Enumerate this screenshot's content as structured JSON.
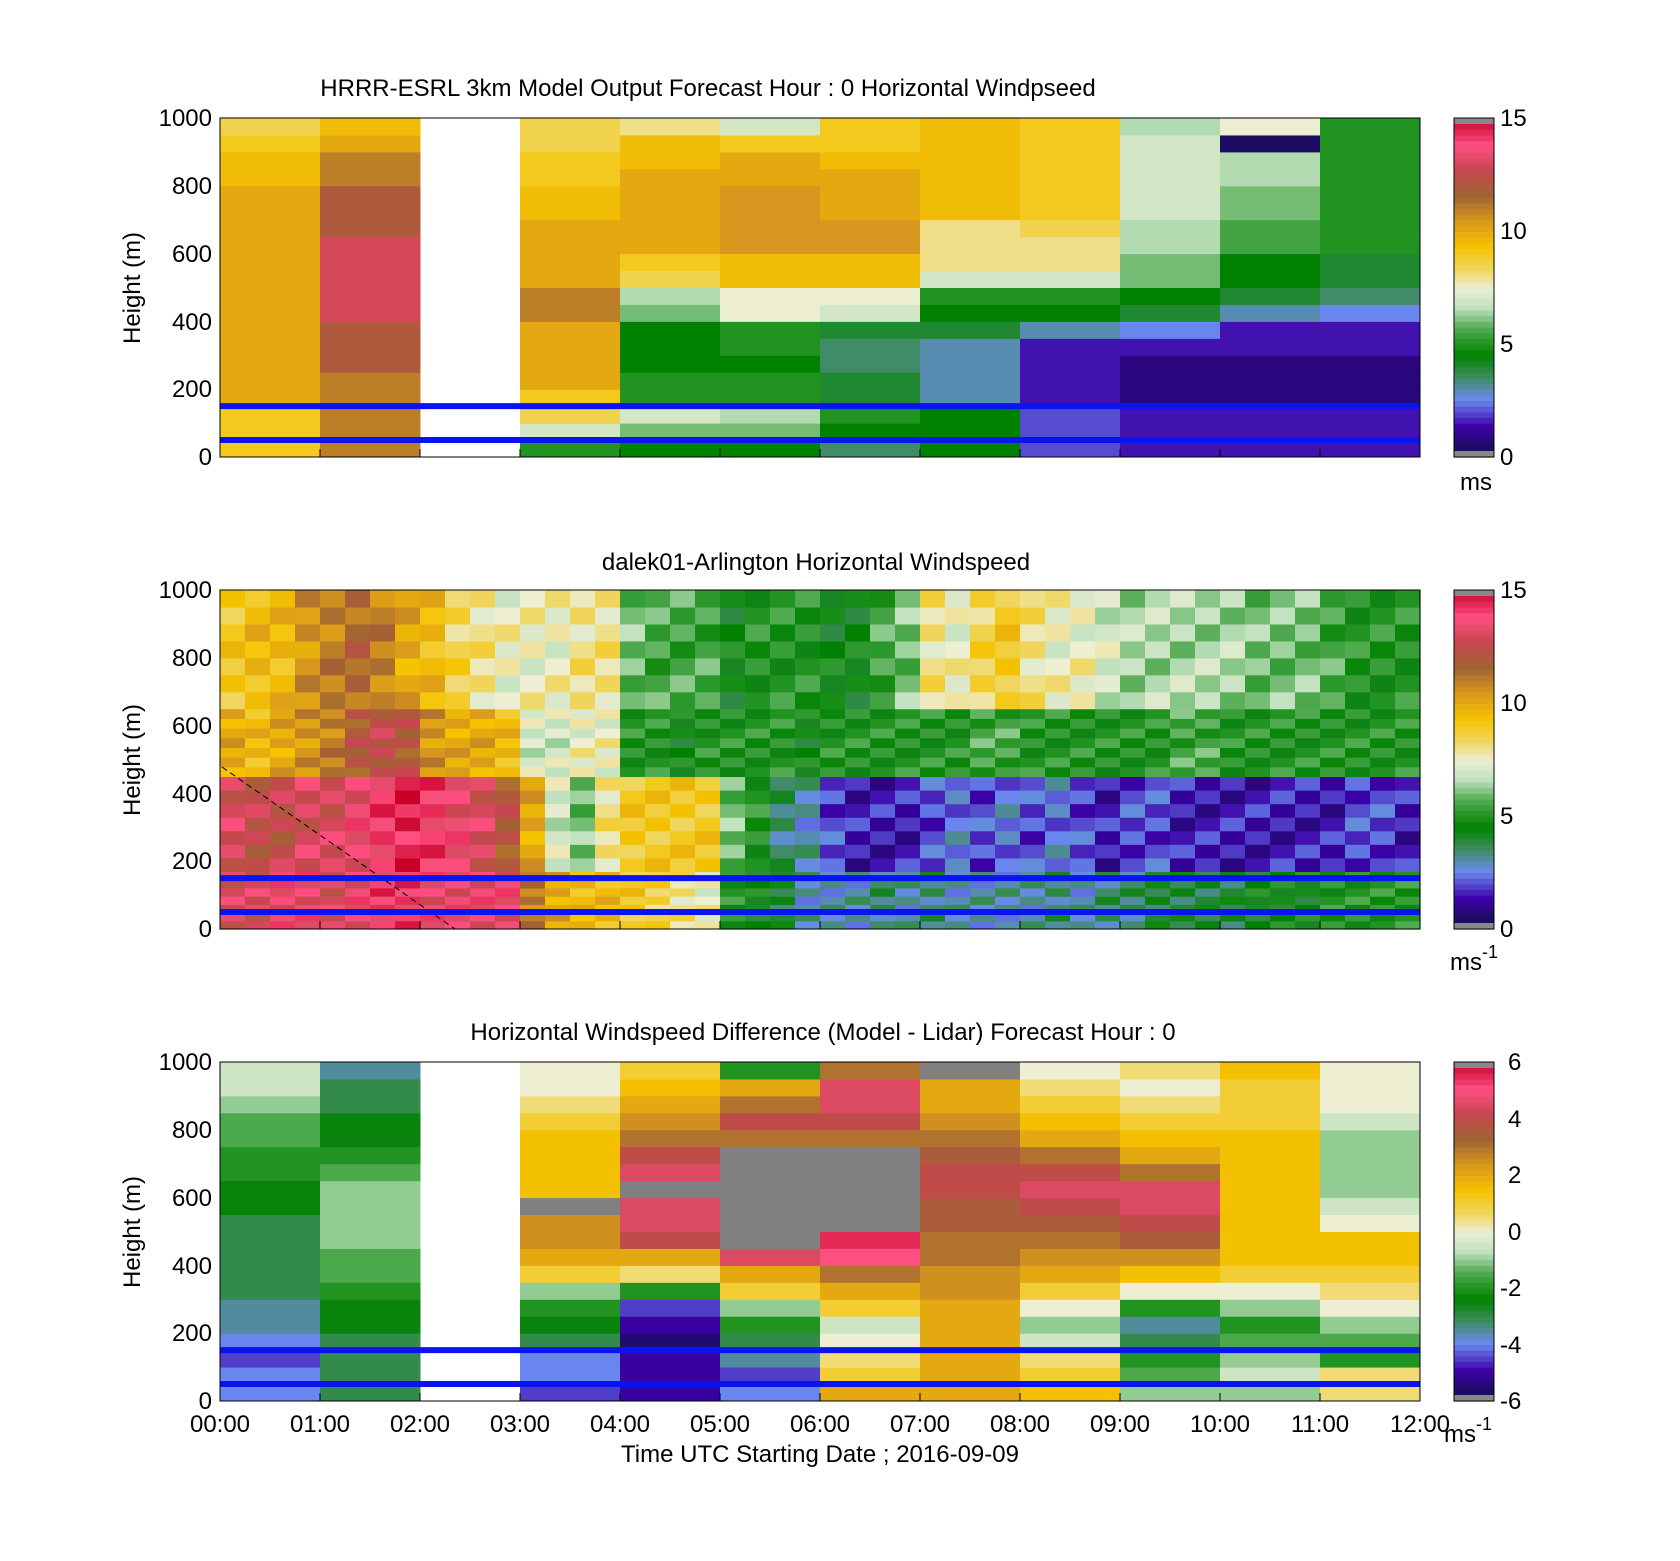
{
  "figure": {
    "xlabel": "Time UTC  Starting Date ; 2016-09-09",
    "x_ticks": [
      "00:00",
      "01:00",
      "02:00",
      "03:00",
      "04:00",
      "05:00",
      "06:00",
      "07:00",
      "08:00",
      "09:00",
      "10:00",
      "11:00",
      "12:00"
    ]
  },
  "chart_data": [
    {
      "type": "heatmap",
      "title": "HRRR-ESRL 3km Model Output   Forecast Hour : 0 Horizontal Windpseed",
      "ylabel": "Height (m)",
      "y_ticks": [
        "0",
        "200",
        "400",
        "600",
        "800",
        "1000"
      ],
      "xlim": [
        "00:00",
        "12:00"
      ],
      "ylim": [
        0,
        1000
      ],
      "colorbar": {
        "min": 0,
        "max": 15,
        "ticks": [
          "0",
          "5",
          "10",
          "15"
        ],
        "unit": "ms",
        "unit_sup": ""
      },
      "hlines_m": [
        50,
        150
      ],
      "hline_color": "#0a14f0",
      "grid": false,
      "heights_m": [
        0,
        50,
        100,
        150,
        200,
        250,
        300,
        350,
        400,
        450,
        500,
        550,
        600,
        650,
        700,
        750,
        800,
        850,
        900,
        950,
        1000
      ],
      "values_ms": [
        [
          9,
          9,
          9,
          10,
          10,
          10,
          10,
          10,
          10,
          10,
          10,
          10,
          10,
          10,
          10,
          10,
          9.5,
          9.5,
          9,
          8.5
        ],
        [
          11,
          11,
          11,
          11,
          11,
          12,
          12,
          12,
          13,
          13,
          13,
          13,
          13,
          12,
          12,
          12,
          11,
          11,
          10,
          9.5
        ],
        null,
        [
          5,
          7,
          8.5,
          9,
          10,
          10,
          10,
          10,
          11,
          11,
          10,
          10,
          10,
          10,
          9.5,
          9.5,
          9,
          9,
          8.5,
          8.5
        ],
        [
          4.5,
          6,
          7,
          5,
          5,
          4.5,
          4.5,
          4.5,
          6,
          6.5,
          8.5,
          9,
          10,
          10,
          10,
          10,
          10,
          9.5,
          9.5,
          8
        ],
        [
          4.5,
          6,
          6.5,
          5,
          5,
          4.5,
          5,
          5,
          7.5,
          7.5,
          9.5,
          9.5,
          10.5,
          10.5,
          10.5,
          10.5,
          10,
          10,
          9,
          7
        ],
        [
          3.5,
          4.5,
          5,
          4,
          4,
          3.5,
          3.5,
          4,
          7,
          7.5,
          9.5,
          9.5,
          10.5,
          10.5,
          10,
          10,
          10,
          9.5,
          9,
          9
        ],
        [
          4.5,
          4.5,
          4.5,
          3,
          3,
          3,
          3,
          4,
          4.5,
          5,
          7,
          8,
          8,
          8,
          9.5,
          9.5,
          9.5,
          9.5,
          9.5,
          9.5
        ],
        [
          2,
          2,
          2,
          1.5,
          1.5,
          1.5,
          1.5,
          3,
          4.5,
          5,
          7,
          8,
          8,
          8.5,
          9,
          9,
          9,
          9,
          9,
          9
        ],
        [
          1.5,
          1.5,
          1.5,
          0.8,
          0.8,
          0.8,
          1.5,
          2.5,
          4,
          4.5,
          6,
          6,
          6.5,
          6.5,
          7,
          7,
          7,
          7,
          7,
          6.5
        ],
        [
          1.5,
          1.5,
          1.5,
          0.8,
          0.8,
          0.8,
          1.5,
          1.5,
          3,
          4,
          4.5,
          4.5,
          5.5,
          5.5,
          6,
          6,
          6.5,
          6.5,
          0.4,
          7.5
        ],
        [
          1.5,
          1.5,
          1.5,
          0.8,
          0.8,
          0.8,
          1.5,
          1.5,
          2.5,
          3.5,
          4,
          4,
          5,
          5,
          5,
          5,
          5,
          5,
          5,
          5
        ]
      ]
    },
    {
      "type": "heatmap",
      "title": "dalek01-Arlington  Horizontal Windspeed",
      "ylabel": "Height (m)",
      "y_ticks": [
        "0",
        "200",
        "400",
        "600",
        "800",
        "1000"
      ],
      "xlim": [
        "00:00",
        "12:00"
      ],
      "ylim": [
        0,
        1000
      ],
      "colorbar": {
        "min": 0,
        "max": 15,
        "ticks": [
          "0",
          "5",
          "10",
          "15"
        ],
        "unit": "ms",
        "unit_sup": "-1"
      },
      "hlines_m": [
        50,
        150
      ],
      "hline_color": "#0a14f0",
      "grid": false,
      "time_hours": [
        0.0,
        0.25,
        0.5,
        0.75,
        1.0,
        1.25,
        1.5,
        1.75,
        2.0,
        2.25,
        2.5,
        2.75,
        3.0,
        3.25,
        3.5,
        3.75,
        4.0,
        4.25,
        4.5,
        4.75,
        5.0,
        5.25,
        5.5,
        5.75,
        6.0,
        6.25,
        6.5,
        6.75,
        7.0,
        7.25,
        7.5,
        7.75,
        8.0,
        8.25,
        8.5,
        8.75,
        9.0,
        9.25,
        9.5,
        9.75,
        10.0,
        10.25,
        10.5,
        10.75,
        11.0,
        11.25,
        11.5,
        11.75
      ],
      "low_layer_ms": [
        13,
        13,
        13.5,
        13.5,
        13,
        13.5,
        14,
        14,
        13.5,
        13.5,
        13.5,
        13.5,
        11,
        10,
        9.5,
        9.5,
        9,
        8.5,
        8,
        7.5,
        5,
        4.5,
        4,
        3,
        3,
        3,
        3.5,
        3,
        3.5,
        3,
        3,
        3,
        3,
        3.5,
        3,
        3.5,
        3.5,
        4,
        4,
        4,
        4,
        4.5,
        4.5,
        4.5,
        5,
        5,
        5,
        5
      ],
      "mid_layer_ms": [
        13,
        12.5,
        12.5,
        13,
        13,
        13.5,
        14,
        14.5,
        14,
        13.5,
        13,
        12,
        10,
        7,
        6,
        8,
        9,
        9,
        9,
        9,
        6,
        5,
        3.5,
        3,
        2,
        1.5,
        1.5,
        1.5,
        2,
        2.5,
        2,
        2.5,
        2,
        2.5,
        2,
        1.5,
        2,
        2,
        1.5,
        1.5,
        1.5,
        1.5,
        1.5,
        1.5,
        1.5,
        2,
        2,
        1.5
      ],
      "upper_layer_ms": [
        10,
        9.5,
        10,
        10.5,
        11,
        12,
        12.5,
        12,
        10.5,
        10,
        10,
        9.5,
        7,
        7,
        7.5,
        7.5,
        5,
        5,
        4.5,
        5,
        5,
        5,
        5,
        4.5,
        5,
        5,
        5,
        5,
        5,
        5,
        5.5,
        5.5,
        5,
        5,
        5,
        5,
        5,
        5,
        5.5,
        5.5,
        5,
        5,
        5,
        5,
        5,
        5,
        5,
        5
      ],
      "top_layer_ms": [
        9,
        9.5,
        9.5,
        10.5,
        11,
        11.5,
        11,
        10,
        9.5,
        8.5,
        8,
        7.5,
        7.5,
        7.5,
        8,
        8,
        6,
        5.5,
        5.5,
        5.5,
        4.5,
        5,
        5,
        5,
        4.5,
        4.5,
        5.5,
        6,
        8,
        7.5,
        8.5,
        9,
        8,
        7.5,
        7.5,
        7,
        6.5,
        6.5,
        6.5,
        6.5,
        6.5,
        6,
        6,
        6,
        5.5,
        5,
        5,
        5
      ]
    },
    {
      "type": "heatmap",
      "title": "Horizontal Windspeed Difference (Model - Lidar) Forecast Hour : 0",
      "ylabel": "Height (m)",
      "y_ticks": [
        "0",
        "200",
        "400",
        "600",
        "800",
        "1000"
      ],
      "xlim": [
        "00:00",
        "12:00"
      ],
      "ylim": [
        0,
        1000
      ],
      "colorbar": {
        "min": -6,
        "max": 6,
        "ticks": [
          "-6",
          "-4",
          "-2",
          "0",
          "2",
          "4",
          "6"
        ],
        "unit": "ms",
        "unit_sup": "-1"
      },
      "hlines_m": [
        50,
        150
      ],
      "hline_color": "#0a14f0",
      "grid": false,
      "heights_m": [
        0,
        50,
        100,
        150,
        200,
        250,
        300,
        350,
        400,
        450,
        500,
        550,
        600,
        650,
        700,
        750,
        800,
        850,
        900,
        950,
        1000
      ],
      "values_ms": [
        [
          -4,
          -4,
          -4.5,
          -4,
          -3.5,
          -3.5,
          -3,
          -3,
          -3,
          -3,
          -3,
          -2.5,
          -2.5,
          -2,
          -2,
          -1.5,
          -1.5,
          -1,
          -0.5,
          -0.5
        ],
        [
          -3,
          -3,
          -3,
          -3,
          -2.5,
          -2.5,
          -2,
          -1.5,
          -1.5,
          -1,
          -1,
          -1,
          -1,
          -1.5,
          -2,
          -2.5,
          -2.5,
          -3,
          -3,
          -3.5
        ],
        null,
        [
          -4.5,
          -4,
          -4,
          -3,
          -2.5,
          -2,
          -1,
          1,
          2,
          2.5,
          2.5,
          null,
          1.5,
          1.5,
          1.5,
          1.5,
          1,
          0.5,
          0,
          0
        ],
        [
          -5,
          -5,
          -5,
          -5.5,
          -5,
          -4.5,
          -2,
          0.5,
          2,
          4,
          4.5,
          4.5,
          null,
          4.5,
          4,
          3,
          2.5,
          2,
          1.5,
          1
        ],
        [
          -4,
          -4.5,
          -3.5,
          -3,
          -2,
          -1,
          1,
          2,
          4.5,
          null,
          null,
          null,
          null,
          null,
          null,
          3,
          4,
          3,
          2,
          -2
        ],
        [
          2,
          1,
          0.5,
          0,
          -0.5,
          1,
          2,
          3,
          5,
          5.5,
          null,
          null,
          null,
          null,
          null,
          3,
          4,
          4.5,
          4.5,
          3
        ],
        [
          2,
          2,
          2,
          2,
          2,
          2,
          2.5,
          2.5,
          3,
          3,
          3.5,
          3.5,
          4,
          4,
          3.5,
          3,
          2.5,
          2,
          2,
          null
        ],
        [
          1.5,
          1,
          0.5,
          -0.5,
          -1,
          0,
          1,
          2,
          2.5,
          3,
          3.5,
          4,
          4.5,
          4,
          3,
          2,
          1.5,
          1,
          0.5,
          0
        ],
        [
          -1,
          -1.5,
          -2,
          -3,
          -3.5,
          -2,
          0,
          1.5,
          2.5,
          3.5,
          4,
          4.5,
          4.5,
          3,
          2,
          1.5,
          1,
          0.5,
          0,
          0.5
        ],
        [
          -1,
          -0.5,
          -1,
          -1.5,
          -2,
          -1,
          0,
          1,
          1.5,
          1.5,
          1.5,
          1.5,
          1.5,
          1.5,
          1.5,
          1.5,
          1,
          1,
          1,
          1.5
        ],
        [
          0.5,
          0.5,
          -2,
          -1.5,
          -1,
          0,
          0.5,
          1,
          1.5,
          1.5,
          0,
          -0.5,
          -1,
          -1,
          -1,
          -1,
          -0.5,
          0,
          0,
          0
        ]
      ]
    }
  ]
}
